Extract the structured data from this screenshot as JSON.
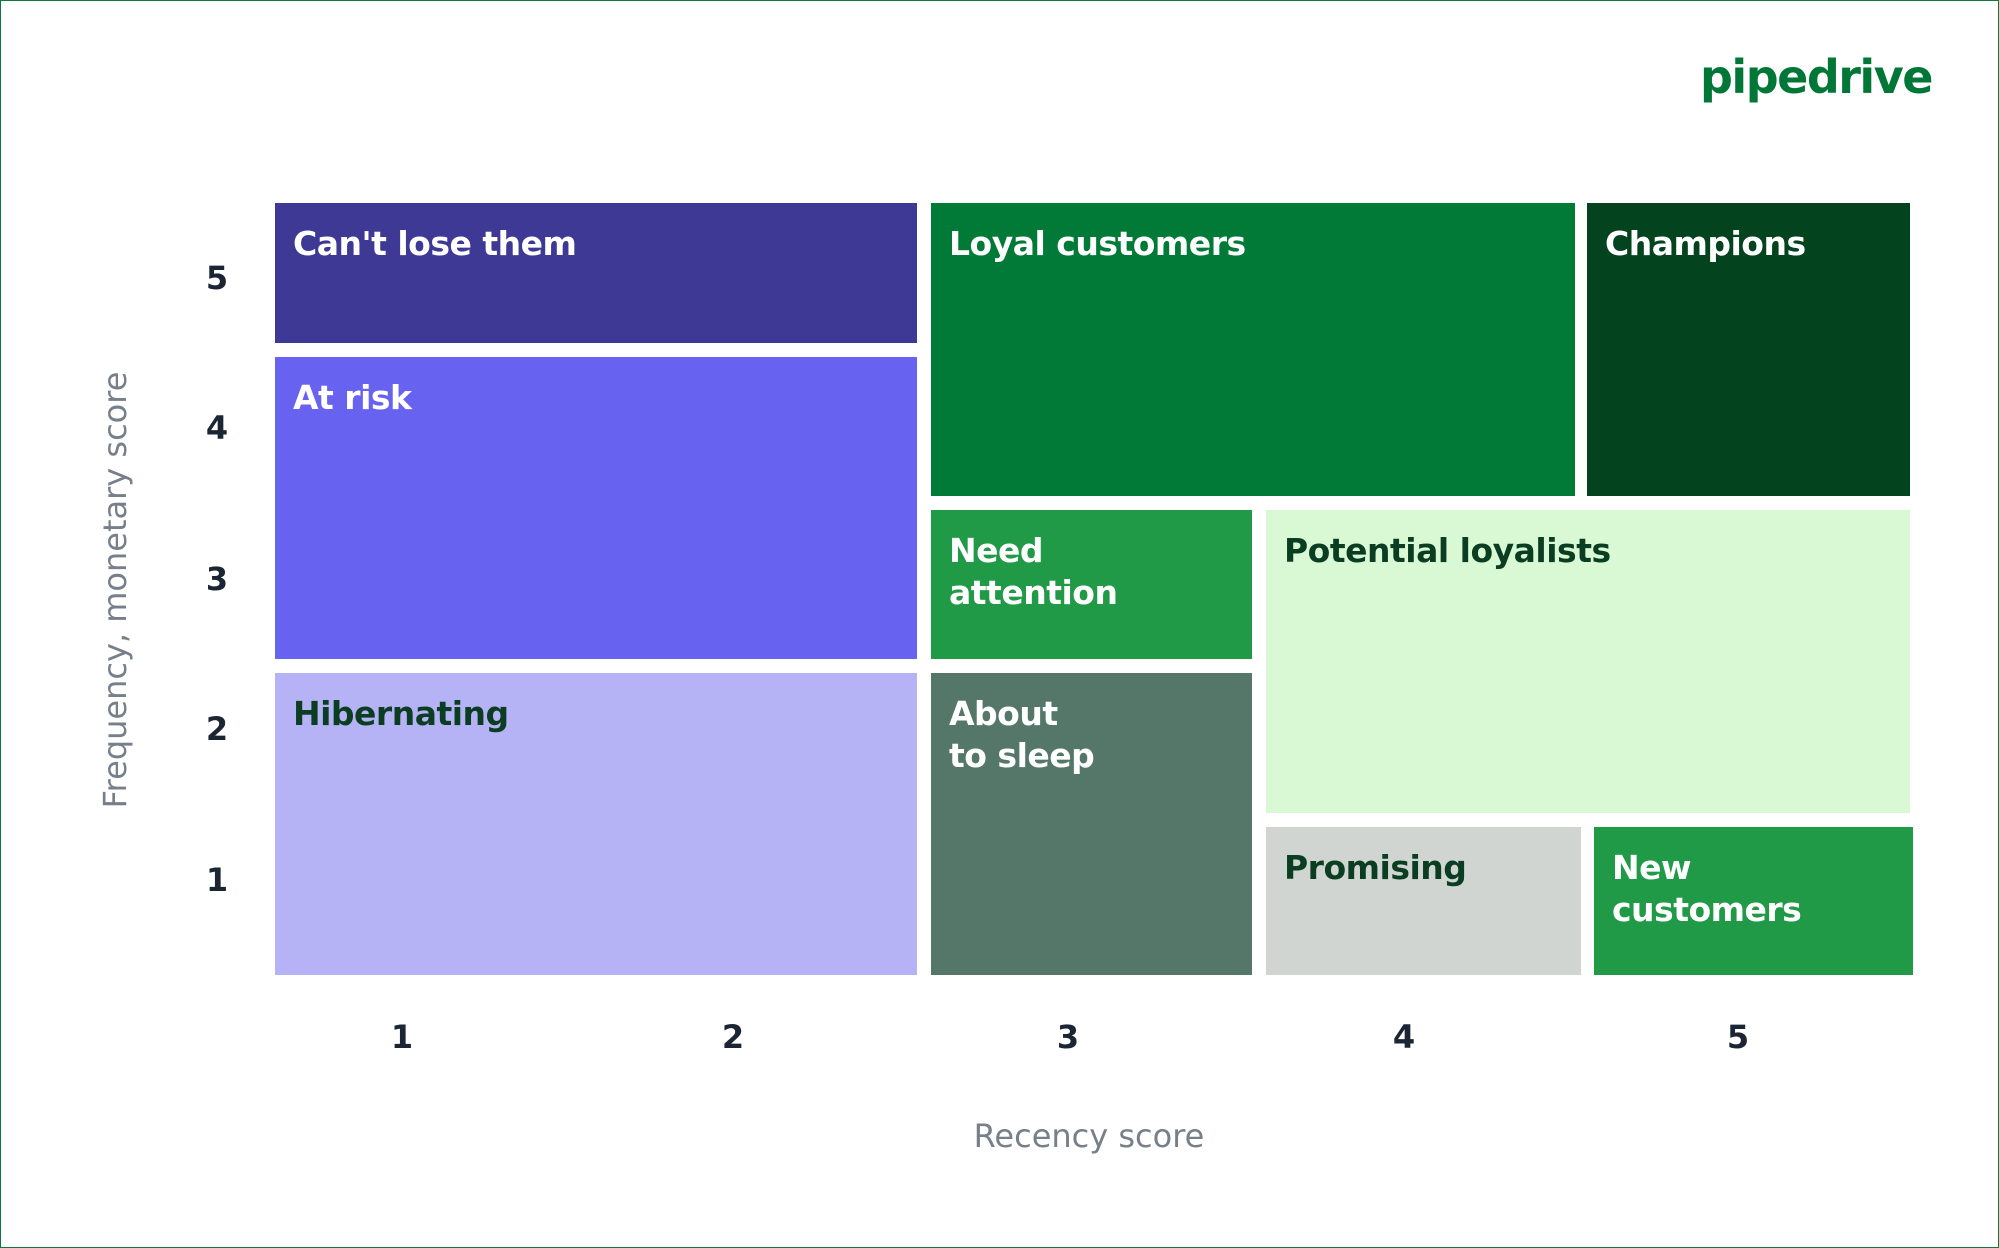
{
  "brand": "pipedrive",
  "y_axis": {
    "title": "Frequency, monetary score",
    "ticks": [
      "5",
      "4",
      "3",
      "2",
      "1"
    ]
  },
  "x_axis": {
    "title": "Recency score",
    "ticks": [
      "1",
      "2",
      "3",
      "4",
      "5"
    ]
  },
  "segments": [
    {
      "lines": [
        "Can't lose them"
      ]
    },
    {
      "lines": [
        "At risk"
      ]
    },
    {
      "lines": [
        "Hibernating"
      ]
    },
    {
      "lines": [
        "Loyal customers"
      ]
    },
    {
      "lines": [
        "Champions"
      ]
    },
    {
      "lines": [
        "Need",
        "attention"
      ]
    },
    {
      "lines": [
        "About",
        "to sleep"
      ]
    },
    {
      "lines": [
        "Potential loyalists"
      ]
    },
    {
      "lines": [
        "Promising"
      ]
    },
    {
      "lines": [
        "New",
        "customers"
      ]
    }
  ]
}
